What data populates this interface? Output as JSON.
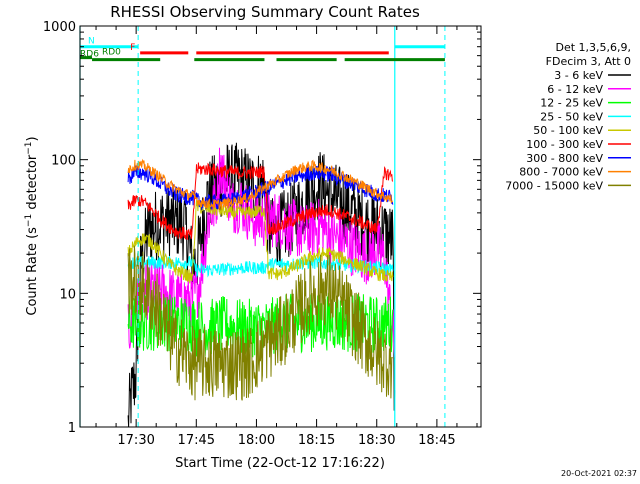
{
  "chart_data": {
    "type": "line",
    "title": "RHESSI Observing Summary Count Rates",
    "xlabel": "Start Time (22-Oct-12 17:16:22)",
    "ylabel": "Count Rate (s",
    "ylabel_sup": "−1",
    "ylabel_rest": " detector",
    "ylabel_sup2": "−1",
    "ylabel_close": ")",
    "yscale": "log",
    "ylim": [
      1,
      1000
    ],
    "xlim_minutes_after_1716": [
      0,
      100
    ],
    "x_ticks": [
      {
        "label": "17:30",
        "minute": 14
      },
      {
        "label": "17:45",
        "minute": 29
      },
      {
        "label": "18:00",
        "minute": 44
      },
      {
        "label": "18:15",
        "minute": 59
      },
      {
        "label": "18:30",
        "minute": 74
      },
      {
        "label": "18:45",
        "minute": 89
      }
    ],
    "y_ticks": [
      {
        "label": "1",
        "value": 1
      },
      {
        "label": "10",
        "value": 10
      },
      {
        "label": "100",
        "value": 100
      },
      {
        "label": "1000",
        "value": 1000
      }
    ],
    "legend_header": [
      "Det 1,3,5,6,9,",
      "FDecim 3, Att 0"
    ],
    "legend_position": "right",
    "timestamp": "20-Oct-2021 02:37",
    "flags": [
      {
        "label": "N",
        "color": "#00ffff",
        "segments": [
          [
            0,
            14.5
          ],
          [
            78.5,
            91
          ]
        ],
        "level": 700
      },
      {
        "label": "F",
        "color": "#ff0000",
        "segments": [
          [
            15,
            27
          ],
          [
            29,
            77
          ]
        ],
        "level": 630
      },
      {
        "label": "RD0",
        "color": "#008000",
        "segments": [
          [
            0,
            3
          ]
        ],
        "level": 580
      },
      {
        "label": "RD6",
        "color": "#008000",
        "segments": [
          [
            3,
            20
          ],
          [
            28.5,
            46
          ],
          [
            49,
            64
          ],
          [
            66,
            91
          ]
        ],
        "level": 560
      }
    ],
    "vlines_solid": [
      {
        "minute": 0,
        "color": "#00ffff"
      },
      {
        "minute": 78.5,
        "color": "#00ffff"
      }
    ],
    "vlines_dashed": [
      {
        "minute": 14.5,
        "color": "#00ffff"
      },
      {
        "minute": 91,
        "color": "#00ffff"
      }
    ],
    "series": [
      {
        "name": "3 - 6 keV",
        "color": "#000000",
        "x": [
          12,
          12.5,
          13,
          14,
          15,
          17,
          20,
          22,
          26,
          28,
          29,
          30,
          32,
          34,
          36,
          38,
          40,
          42,
          44,
          46,
          47,
          48,
          50,
          52,
          54,
          56,
          58,
          60,
          62,
          64,
          66,
          68,
          70,
          72,
          74,
          76,
          78,
          78.5
        ],
        "y": [
          1,
          1.5,
          1.8,
          2.5,
          15,
          30,
          34,
          35,
          33,
          17,
          17,
          25,
          55,
          60,
          75,
          70,
          72,
          65,
          62,
          68,
          30,
          28,
          30,
          34,
          40,
          50,
          60,
          65,
          55,
          50,
          45,
          40,
          35,
          32,
          30,
          28,
          25,
          1
        ]
      },
      {
        "name": "6 - 12 keV",
        "color": "#ff00ff",
        "x": [
          12,
          14,
          16,
          18,
          20,
          22,
          24,
          26,
          28,
          29,
          30,
          32,
          34,
          35,
          36,
          38,
          40,
          42,
          44,
          46,
          48,
          50,
          52,
          54,
          56,
          58,
          60,
          62,
          64,
          66,
          68,
          70,
          72,
          74,
          76,
          78,
          78.5
        ],
        "y": [
          5,
          8,
          10,
          11,
          11,
          10,
          9,
          9,
          9,
          10,
          13,
          35,
          50,
          95,
          70,
          45,
          48,
          40,
          35,
          36,
          36,
          35,
          32,
          30,
          28,
          30,
          32,
          28,
          26,
          24,
          22,
          20,
          19,
          22,
          18,
          5,
          4
        ]
      },
      {
        "name": "12 - 25 keV",
        "color": "#00ff00",
        "x": [
          12,
          16,
          20,
          24,
          28,
          29,
          32,
          36,
          40,
          44,
          46,
          47,
          50,
          54,
          58,
          62,
          66,
          70,
          74,
          78
        ],
        "y": [
          6,
          6,
          6.2,
          6,
          6,
          5.5,
          5.5,
          5.8,
          5.5,
          5.5,
          5.5,
          5.5,
          6,
          6,
          6,
          6.2,
          6,
          6,
          5.8,
          6
        ]
      },
      {
        "name": "25 - 50 keV",
        "color": "#00ffff",
        "x": [
          12,
          14,
          20,
          26,
          28,
          29,
          34,
          40,
          46,
          47,
          52,
          58,
          64,
          70,
          74,
          78
        ],
        "y": [
          17,
          17,
          17,
          17,
          17,
          15,
          15,
          15.5,
          15.5,
          16.5,
          16.5,
          17,
          16.5,
          16,
          15.5,
          15
        ]
      },
      {
        "name": "50 - 100 keV",
        "color": "#c8c800",
        "x": [
          12,
          14,
          16,
          18,
          20,
          22,
          24,
          26,
          28,
          29,
          30,
          34,
          38,
          42,
          46,
          47,
          50,
          54,
          58,
          62,
          66,
          70,
          74,
          78
        ],
        "y": [
          20,
          24,
          26,
          24,
          20,
          17,
          15,
          14,
          13,
          45,
          44,
          42,
          40,
          40,
          42,
          14,
          14,
          16,
          19,
          20,
          18,
          16,
          14,
          13
        ]
      },
      {
        "name": "100 - 300 keV",
        "color": "#ff0000",
        "x": [
          12,
          14,
          16,
          18,
          20,
          22,
          24,
          26,
          28,
          29,
          32,
          36,
          40,
          44,
          46,
          47,
          50,
          54,
          58,
          62,
          66,
          70,
          74,
          76,
          78
        ],
        "y": [
          45,
          50,
          48,
          42,
          36,
          32,
          29,
          28,
          27,
          85,
          85,
          82,
          80,
          80,
          82,
          30,
          32,
          36,
          40,
          42,
          38,
          34,
          30,
          80,
          75
        ]
      },
      {
        "name": "300 - 800 keV",
        "color": "#0000ff",
        "x": [
          12,
          14,
          16,
          18,
          20,
          22,
          24,
          26,
          28,
          30,
          34,
          38,
          42,
          46,
          50,
          54,
          58,
          62,
          66,
          70,
          74,
          78
        ],
        "y": [
          72,
          80,
          80,
          74,
          66,
          60,
          55,
          53,
          52,
          48,
          48,
          50,
          55,
          60,
          68,
          75,
          80,
          78,
          70,
          62,
          55,
          52
        ]
      },
      {
        "name": "800 - 7000 keV",
        "color": "#ff8000",
        "x": [
          12,
          14,
          16,
          18,
          20,
          22,
          24,
          26,
          28,
          30,
          34,
          38,
          42,
          46,
          50,
          54,
          58,
          62,
          66,
          70,
          74,
          78
        ],
        "y": [
          85,
          92,
          90,
          82,
          74,
          66,
          60,
          56,
          54,
          48,
          46,
          48,
          52,
          62,
          72,
          85,
          90,
          85,
          75,
          65,
          56,
          50
        ]
      },
      {
        "name": "7000 - 15000 keV",
        "color": "#808000",
        "x": [
          12,
          14,
          16,
          18,
          20,
          22,
          24,
          26,
          28,
          30,
          34,
          38,
          42,
          46,
          50,
          54,
          58,
          62,
          66,
          70,
          74,
          78
        ],
        "y": [
          13,
          12,
          11,
          9,
          7,
          5,
          4,
          3.5,
          3,
          3,
          3,
          3,
          3,
          4,
          5,
          7,
          10,
          11,
          8,
          5,
          3.5,
          3
        ]
      }
    ]
  }
}
